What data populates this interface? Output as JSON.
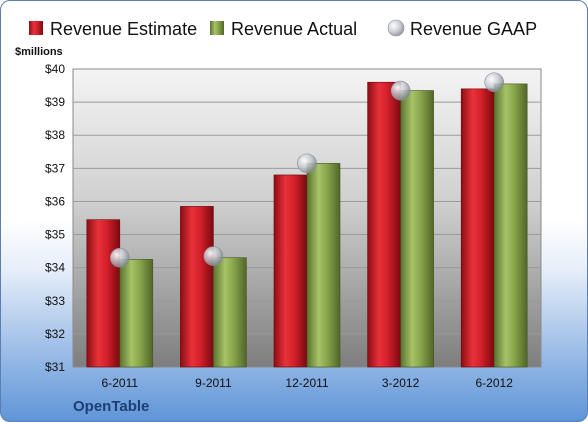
{
  "chart_data": {
    "type": "bar",
    "title": "",
    "xlabel": "",
    "ylabel": "",
    "unit_label": "$millions",
    "company": "OpenTable",
    "categories": [
      "6-2011",
      "9-2011",
      "12-2011",
      "3-2012",
      "6-2012"
    ],
    "ylim": [
      31,
      40
    ],
    "yticks": [
      31,
      32,
      33,
      34,
      35,
      36,
      37,
      38,
      39,
      40
    ],
    "ytick_labels": [
      "$31",
      "$32",
      "$33",
      "$34",
      "$35",
      "$36",
      "$37",
      "$38",
      "$39",
      "$40"
    ],
    "series": [
      {
        "name": "Revenue Estimate",
        "kind": "bar",
        "color": "#d4202a",
        "values": [
          35.45,
          35.85,
          36.8,
          39.6,
          39.4
        ]
      },
      {
        "name": "Revenue Actual",
        "kind": "bar",
        "color": "#8aa64c",
        "values": [
          34.25,
          34.3,
          37.15,
          39.35,
          39.55
        ]
      },
      {
        "name": "Revenue GAAP",
        "kind": "marker",
        "color": "#c8ccd4",
        "values": [
          34.3,
          34.35,
          37.15,
          39.35,
          39.6
        ]
      }
    ],
    "grid": true,
    "legend": "top"
  }
}
